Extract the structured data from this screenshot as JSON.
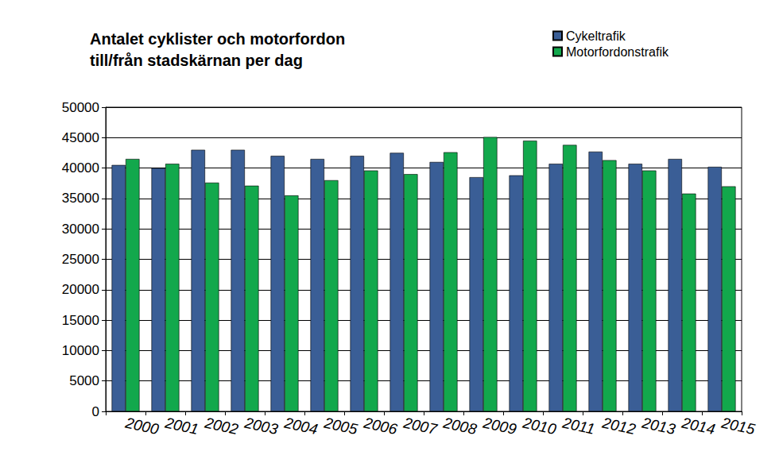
{
  "chart_data": {
    "type": "bar",
    "title": "Antalet cyklister och motorfordon\ntill/från stadskärnan per dag",
    "categories": [
      "2000",
      "2001",
      "2002",
      "2003",
      "2004",
      "2005",
      "2006",
      "2007",
      "2008",
      "2009",
      "2010",
      "2011",
      "2012",
      "2013",
      "2014",
      "2015"
    ],
    "series": [
      {
        "name": "Cykeltrafik",
        "color": "#3a5e96",
        "values": [
          40500,
          40000,
          43000,
          43000,
          42000,
          41500,
          42000,
          42500,
          41000,
          38500,
          38800,
          40700,
          42700,
          40700,
          41500,
          40200
        ]
      },
      {
        "name": "Motorfordonstrafik",
        "color": "#12a84c",
        "values": [
          41500,
          40700,
          37600,
          37100,
          35500,
          38000,
          39600,
          39000,
          42600,
          45100,
          44500,
          43800,
          41300,
          39600,
          35800,
          37000
        ]
      }
    ],
    "ylim": [
      0,
      50000
    ],
    "yticks": [
      0,
      5000,
      10000,
      15000,
      20000,
      25000,
      30000,
      35000,
      40000,
      45000,
      50000
    ],
    "grid": true,
    "legend": "upper right"
  }
}
